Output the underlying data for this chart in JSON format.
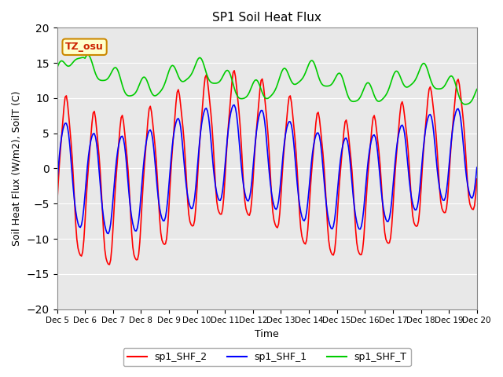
{
  "title": "SP1 Soil Heat Flux",
  "xlabel": "Time",
  "ylabel": "Soil Heat Flux (W/m2), SoilT (C)",
  "ylim": [
    -20,
    20
  ],
  "xlim": [
    0,
    360
  ],
  "tick_labels": [
    "Dec 5",
    "Dec 6",
    "Dec 7",
    "Dec 8",
    "Dec 9",
    "Dec 10",
    "Dec 11",
    "Dec 12",
    "Dec 13",
    "Dec 14",
    "Dec 15",
    "Dec 16",
    "Dec 17",
    "Dec 18",
    "Dec 19",
    "Dec 20"
  ],
  "tick_positions": [
    0,
    24,
    48,
    72,
    96,
    120,
    144,
    168,
    192,
    216,
    240,
    264,
    288,
    312,
    336,
    360
  ],
  "color_shf2": "#ff0000",
  "color_shf1": "#0000ff",
  "color_shfT": "#00cc00",
  "legend_labels": [
    "sp1_SHF_2",
    "sp1_SHF_1",
    "sp1_SHF_T"
  ],
  "tz_label": "TZ_osu",
  "bg_color": "#e8e8e8",
  "yticks": [
    -20,
    -15,
    -10,
    -5,
    0,
    5,
    10,
    15,
    20
  ]
}
